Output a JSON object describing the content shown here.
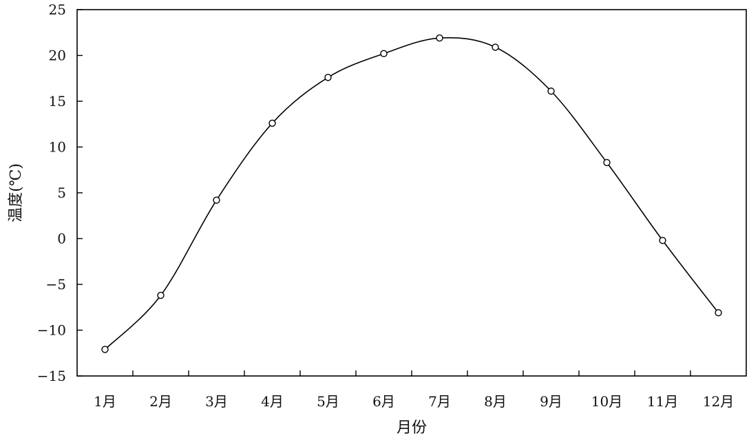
{
  "chart_data": {
    "type": "line",
    "xlabel": "月份",
    "ylabel": "温度(℃)",
    "categories": [
      "1月",
      "2月",
      "3月",
      "4月",
      "5月",
      "6月",
      "7月",
      "8月",
      "9月",
      "10月",
      "11月",
      "12月"
    ],
    "series": [
      {
        "values": [
          -12.1,
          -6.2,
          4.2,
          12.6,
          17.6,
          20.2,
          21.9,
          20.9,
          16.1,
          8.3,
          -0.2,
          -8.1
        ],
        "color": "#000000"
      }
    ],
    "ylim": [
      -15,
      25
    ],
    "yticks": [
      -15,
      -10,
      -5,
      0,
      5,
      10,
      15,
      20,
      25
    ],
    "ytick_labels": [
      "−15",
      "−10",
      "−5",
      "0",
      "5",
      "10",
      "15",
      "20",
      "25"
    ],
    "grid": false,
    "marker": "open-circle"
  }
}
